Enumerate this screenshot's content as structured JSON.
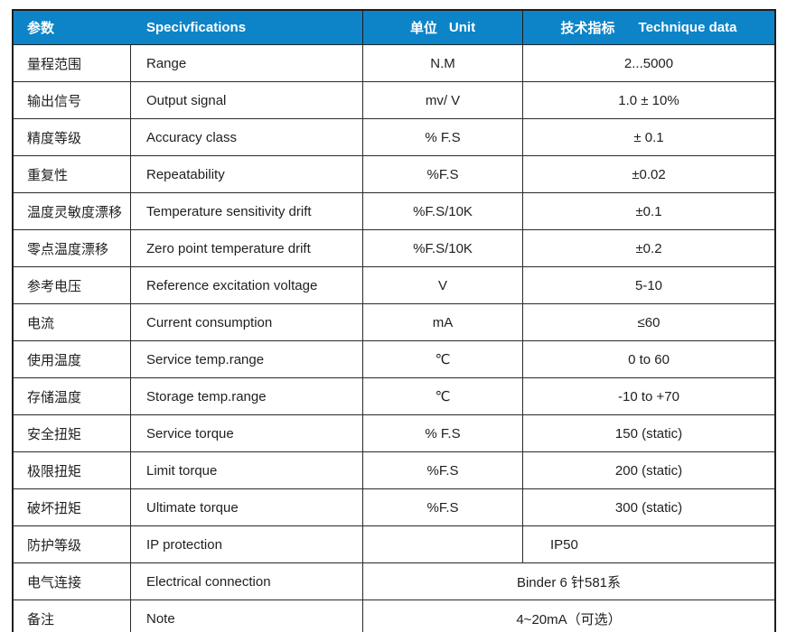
{
  "table": {
    "header": {
      "param_cn": "参数",
      "spec_en": "Specivfications",
      "unit_cn": "单位",
      "unit_en": "Unit",
      "tech_cn": "技术指标",
      "tech_en": "Technique data"
    },
    "rows": [
      {
        "cn": "量程范围",
        "en": "Range",
        "unit": "N.M",
        "value": "2...5000"
      },
      {
        "cn": "输出信号",
        "en": "Output signal",
        "unit": "mv/ V",
        "value": "1.0 ± 10%"
      },
      {
        "cn": "精度等级",
        "en": "Accuracy class",
        "unit": "% F.S",
        "value": "± 0.1"
      },
      {
        "cn": "重复性",
        "en": "Repeatability",
        "unit": "%F.S",
        "value": "±0.02"
      },
      {
        "cn": "温度灵敏度漂移",
        "en": "Temperature sensitivity drift",
        "unit": "%F.S/10K",
        "value": "±0.1"
      },
      {
        "cn": "零点温度漂移",
        "en": "Zero point temperature drift",
        "unit": "%F.S/10K",
        "value": "±0.2"
      },
      {
        "cn": "参考电压",
        "en": "Reference excitation voltage",
        "unit": "V",
        "value": "5-10"
      },
      {
        "cn": "电流",
        "en": "Current consumption",
        "unit": "mA",
        "value": "≤60"
      },
      {
        "cn": "使用温度",
        "en": "Service temp.range",
        "unit": "℃",
        "value": "0 to 60"
      },
      {
        "cn": "存储温度",
        "en": "Storage temp.range",
        "unit": "℃",
        "value": "-10 to +70"
      },
      {
        "cn": "安全扭矩",
        "en": "Service torque",
        "unit": "% F.S",
        "value": "150 (static)"
      },
      {
        "cn": "极限扭矩",
        "en": "Limit torque",
        "unit": "%F.S",
        "value": "200 (static)"
      },
      {
        "cn": "破坏扭矩",
        "en": "Ultimate torque",
        "unit": "%F.S",
        "value": "300 (static)"
      },
      {
        "cn": "防护等级",
        "en": "IP protection",
        "unit": "",
        "value": "IP50"
      },
      {
        "cn": "电气连接",
        "en": "Electrical connection",
        "value": "Binder 6 针581系"
      },
      {
        "cn": "备注",
        "en": "Note",
        "value": "4~20mA（可选）"
      }
    ],
    "colors": {
      "header_bg": "#0e84c8",
      "header_text": "#ffffff",
      "border": "#2a2a2a",
      "body_text": "#1f1f1f"
    }
  }
}
